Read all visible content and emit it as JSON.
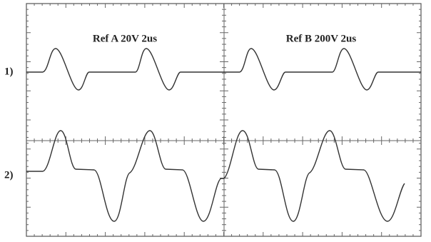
{
  "screen": {
    "labels": {
      "ref_a": "Ref A 20V 2us",
      "ref_b": "Ref B 200V 2us"
    },
    "channels": [
      "1)",
      "2)"
    ]
  }
}
